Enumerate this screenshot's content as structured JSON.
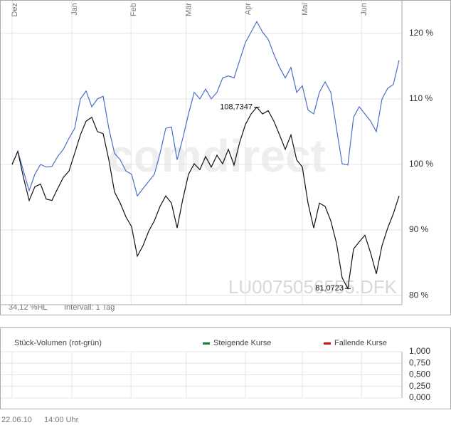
{
  "chart_data": [
    {
      "type": "line",
      "x": [
        0,
        1,
        2,
        3,
        4,
        5,
        6,
        7,
        8,
        9,
        10,
        11,
        12,
        13,
        14,
        15,
        16,
        17,
        18,
        19,
        20,
        21,
        22,
        23,
        24,
        25,
        26,
        27,
        28,
        29,
        30,
        31,
        32,
        33,
        34,
        35,
        36,
        37,
        38,
        39,
        40,
        41,
        42,
        43,
        44,
        45,
        46,
        47,
        48,
        49,
        50,
        51,
        52,
        53,
        54,
        55,
        56,
        57,
        58,
        59,
        60,
        61,
        62,
        63,
        64,
        65,
        66,
        67,
        68
      ],
      "series": [
        {
          "color": "#4a6fc8",
          "values": [
            100,
            102,
            99,
            96,
            98.5,
            100,
            99.6,
            99.7,
            101.2,
            102.3,
            104,
            105.5,
            110,
            111.2,
            108.8,
            110,
            110.4,
            105.5,
            101.7,
            100.7,
            99,
            98.5,
            95.2,
            96.3,
            97.4,
            98.5,
            101.7,
            105.5,
            105.7,
            100.7,
            104,
            107.7,
            111,
            110,
            111.5,
            110,
            111,
            113.2,
            113.5,
            113.2,
            115.9,
            118.6,
            120.2,
            121.8,
            120.2,
            119.1,
            116.8,
            114.8,
            113.2,
            114.8,
            111,
            112,
            108.3,
            107.7,
            111,
            112.6,
            111,
            105.5,
            100.1,
            99.9,
            107.2,
            108.8,
            107.7,
            106.6,
            105,
            110,
            111.6,
            112.2,
            115.9
          ]
        },
        {
          "color": "#111111",
          "values": [
            100,
            102,
            98,
            94.5,
            96.6,
            97,
            94.7,
            94.5,
            96.3,
            98,
            99,
            101.7,
            104.5,
            106.6,
            107.2,
            105,
            104.7,
            100.7,
            95.8,
            94.1,
            92,
            90.5,
            86,
            87.6,
            89.8,
            91.4,
            93.6,
            95.2,
            94.1,
            90.3,
            94.7,
            98.5,
            100.1,
            99.2,
            101.2,
            99.6,
            101.4,
            100.1,
            102.3,
            99.9,
            103.4,
            106.1,
            107.7,
            108.7347,
            107.7,
            108.2,
            106.6,
            104.5,
            102.3,
            104.5,
            100.7,
            99.6,
            94.1,
            90.3,
            94.1,
            93.6,
            91.4,
            88,
            82.7,
            81.0723,
            87.1,
            88.2,
            89.2,
            86.5,
            83.3,
            87.6,
            90.3,
            92.5,
            95.2
          ]
        }
      ],
      "xlim": [
        0,
        68
      ],
      "xticks": [
        {
          "value": 0,
          "label": "Dez"
        },
        {
          "value": 10.5,
          "label": "Jan"
        },
        {
          "value": 20.9,
          "label": "Feb"
        },
        {
          "value": 30.6,
          "label": "Mär"
        },
        {
          "value": 41,
          "label": "Apr"
        },
        {
          "value": 51,
          "label": "Mai"
        },
        {
          "value": 61.4,
          "label": "Jun"
        }
      ],
      "ylim": [
        78.6,
        124
      ],
      "yticks": [
        {
          "value": 80,
          "label": "80 %"
        },
        {
          "value": 90,
          "label": "90 %"
        },
        {
          "value": 100,
          "label": "100 %"
        },
        {
          "value": 110,
          "label": "110 %"
        },
        {
          "value": 120,
          "label": "120 %"
        }
      ],
      "grid": true,
      "annotations": [
        {
          "text": "108,7347",
          "x": 43,
          "y": 108.7347
        },
        {
          "text": "81,0723",
          "x": 59,
          "y": 81.0723
        }
      ],
      "watermark": "comdirect",
      "symbol": "LU0075056555.DFK",
      "range_label": "34,12 %HL",
      "interval_label": "Intervall: 1 Tag"
    },
    {
      "type": "bar",
      "title": "Stück-Volumen (rot-grün)",
      "series": [
        {
          "name": "Steigende Kurse",
          "color": "#1a7a3a",
          "values": []
        },
        {
          "name": "Fallende Kurse",
          "color": "#cc1111",
          "values": []
        }
      ],
      "ylim": [
        0,
        1
      ],
      "yticks": [
        {
          "value": 0,
          "label": "0,000"
        },
        {
          "value": 0.25,
          "label": "0,250"
        },
        {
          "value": 0.5,
          "label": "0,500"
        },
        {
          "value": 0.75,
          "label": "0,750"
        },
        {
          "value": 1,
          "label": "1,000"
        }
      ],
      "grid": true
    }
  ],
  "footer": {
    "date": "22.06.10",
    "time": "14:00 Uhr"
  }
}
